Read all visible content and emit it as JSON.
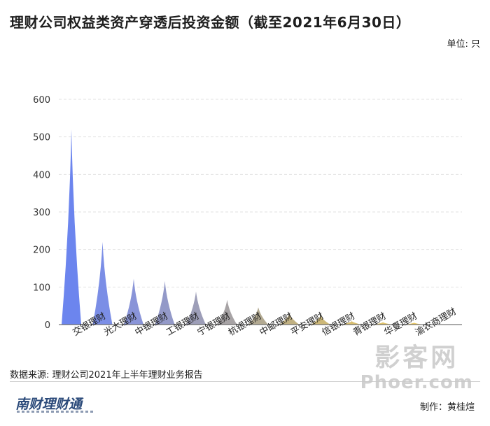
{
  "header": {
    "title": "理财公司权益类资产穿透后投资金额（截至2021年6月30日）",
    "unit": "单位: 只"
  },
  "footer": {
    "source": "数据来源: 理财公司2021年上半年理财业务报告",
    "logo": "南财理财通",
    "maker": "制作：黄桂煊"
  },
  "watermark": {
    "logo": "影客网",
    "url": "Phoer.com"
  },
  "chart_data": {
    "type": "bar",
    "categories": [
      "交银理财",
      "光大理财",
      "中银理财",
      "工银理财",
      "宁银理财",
      "杭银理财",
      "中邮理财",
      "平安理财",
      "信银理财",
      "青银理财",
      "华夏理财",
      "渝农商理财"
    ],
    "values": [
      520,
      220,
      122,
      116,
      88,
      66,
      46,
      29,
      24,
      9,
      6,
      5
    ],
    "ylim": [
      0,
      600
    ],
    "yticks": [
      0,
      100,
      200,
      300,
      400,
      500,
      600
    ],
    "grid": true,
    "colors": [
      "#6c85ee",
      "#7b8ee6",
      "#8994d8",
      "#9399c8",
      "#9d9eb8",
      "#a7a3a5",
      "#b3aa92",
      "#c1b182",
      "#cdb878",
      "#d8be70",
      "#e1c46a",
      "#e8c865"
    ]
  }
}
